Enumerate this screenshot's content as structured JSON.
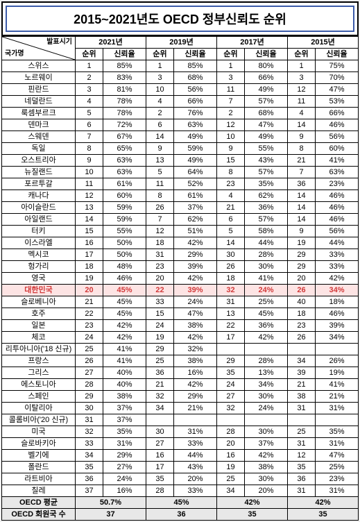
{
  "title": "2015~2021년도 OECD 정부신뢰도 순위",
  "corner": {
    "top": "발표시기",
    "bottom": "국가명"
  },
  "years": [
    "2021년",
    "2019년",
    "2017년",
    "2015년"
  ],
  "subHeaders": {
    "rank": "순위",
    "trust": "신뢰율"
  },
  "rows": [
    {
      "c": "스위스",
      "d": [
        [
          "1",
          "85%"
        ],
        [
          "1",
          "85%"
        ],
        [
          "1",
          "80%"
        ],
        [
          "1",
          "75%"
        ]
      ]
    },
    {
      "c": "노르웨이",
      "d": [
        [
          "2",
          "83%"
        ],
        [
          "3",
          "68%"
        ],
        [
          "3",
          "66%"
        ],
        [
          "3",
          "70%"
        ]
      ]
    },
    {
      "c": "핀란드",
      "d": [
        [
          "3",
          "81%"
        ],
        [
          "10",
          "56%"
        ],
        [
          "11",
          "49%"
        ],
        [
          "12",
          "47%"
        ]
      ]
    },
    {
      "c": "네덜란드",
      "d": [
        [
          "4",
          "78%"
        ],
        [
          "4",
          "66%"
        ],
        [
          "7",
          "57%"
        ],
        [
          "11",
          "53%"
        ]
      ]
    },
    {
      "c": "룩셈부르크",
      "d": [
        [
          "5",
          "78%"
        ],
        [
          "2",
          "76%"
        ],
        [
          "2",
          "68%"
        ],
        [
          "4",
          "66%"
        ]
      ]
    },
    {
      "c": "덴마크",
      "d": [
        [
          "6",
          "72%"
        ],
        [
          "6",
          "63%"
        ],
        [
          "12",
          "47%"
        ],
        [
          "14",
          "46%"
        ]
      ]
    },
    {
      "c": "스웨덴",
      "d": [
        [
          "7",
          "67%"
        ],
        [
          "14",
          "49%"
        ],
        [
          "10",
          "49%"
        ],
        [
          "9",
          "56%"
        ]
      ]
    },
    {
      "c": "독일",
      "d": [
        [
          "8",
          "65%"
        ],
        [
          "9",
          "59%"
        ],
        [
          "9",
          "55%"
        ],
        [
          "8",
          "60%"
        ]
      ]
    },
    {
      "c": "오스트리아",
      "d": [
        [
          "9",
          "63%"
        ],
        [
          "13",
          "49%"
        ],
        [
          "15",
          "43%"
        ],
        [
          "21",
          "41%"
        ]
      ]
    },
    {
      "c": "뉴질랜드",
      "d": [
        [
          "10",
          "63%"
        ],
        [
          "5",
          "64%"
        ],
        [
          "8",
          "57%"
        ],
        [
          "7",
          "63%"
        ]
      ]
    },
    {
      "c": "포르투갈",
      "d": [
        [
          "11",
          "61%"
        ],
        [
          "11",
          "52%"
        ],
        [
          "23",
          "35%"
        ],
        [
          "36",
          "23%"
        ]
      ]
    },
    {
      "c": "캐나다",
      "d": [
        [
          "12",
          "60%"
        ],
        [
          "8",
          "61%"
        ],
        [
          "4",
          "62%"
        ],
        [
          "14",
          "46%"
        ]
      ]
    },
    {
      "c": "아이슬란드",
      "d": [
        [
          "13",
          "59%"
        ],
        [
          "26",
          "37%"
        ],
        [
          "21",
          "36%"
        ],
        [
          "14",
          "46%"
        ]
      ]
    },
    {
      "c": "아일랜드",
      "d": [
        [
          "14",
          "59%"
        ],
        [
          "7",
          "62%"
        ],
        [
          "6",
          "57%"
        ],
        [
          "14",
          "46%"
        ]
      ]
    },
    {
      "c": "터키",
      "d": [
        [
          "15",
          "55%"
        ],
        [
          "12",
          "51%"
        ],
        [
          "5",
          "58%"
        ],
        [
          "9",
          "56%"
        ]
      ]
    },
    {
      "c": "이스라엘",
      "d": [
        [
          "16",
          "50%"
        ],
        [
          "18",
          "42%"
        ],
        [
          "14",
          "44%"
        ],
        [
          "19",
          "44%"
        ]
      ]
    },
    {
      "c": "멕시코",
      "d": [
        [
          "17",
          "50%"
        ],
        [
          "31",
          "29%"
        ],
        [
          "30",
          "28%"
        ],
        [
          "29",
          "33%"
        ]
      ]
    },
    {
      "c": "헝가리",
      "d": [
        [
          "18",
          "48%"
        ],
        [
          "23",
          "39%"
        ],
        [
          "26",
          "30%"
        ],
        [
          "29",
          "33%"
        ]
      ]
    },
    {
      "c": "영국",
      "d": [
        [
          "19",
          "46%"
        ],
        [
          "20",
          "42%"
        ],
        [
          "18",
          "41%"
        ],
        [
          "20",
          "42%"
        ]
      ]
    },
    {
      "c": "대한민국",
      "hl": true,
      "d": [
        [
          "20",
          "45%"
        ],
        [
          "22",
          "39%"
        ],
        [
          "32",
          "24%"
        ],
        [
          "26",
          "34%"
        ]
      ]
    },
    {
      "c": "슬로베니아",
      "d": [
        [
          "21",
          "45%"
        ],
        [
          "33",
          "24%"
        ],
        [
          "31",
          "25%"
        ],
        [
          "40",
          "18%"
        ]
      ]
    },
    {
      "c": "호주",
      "d": [
        [
          "22",
          "45%"
        ],
        [
          "15",
          "47%"
        ],
        [
          "13",
          "45%"
        ],
        [
          "18",
          "46%"
        ]
      ]
    },
    {
      "c": "일본",
      "d": [
        [
          "23",
          "42%"
        ],
        [
          "24",
          "38%"
        ],
        [
          "22",
          "36%"
        ],
        [
          "23",
          "39%"
        ]
      ]
    },
    {
      "c": "체코",
      "d": [
        [
          "24",
          "42%"
        ],
        [
          "19",
          "42%"
        ],
        [
          "17",
          "42%"
        ],
        [
          "26",
          "34%"
        ]
      ]
    },
    {
      "c": "리투아니아('18 신규)",
      "d": [
        [
          "25",
          "41%"
        ],
        [
          "29",
          "32%"
        ],
        [
          "",
          ""
        ],
        [
          "",
          ""
        ]
      ]
    },
    {
      "c": "프랑스",
      "d": [
        [
          "26",
          "41%"
        ],
        [
          "25",
          "38%"
        ],
        [
          "29",
          "28%"
        ],
        [
          "34",
          "26%"
        ]
      ]
    },
    {
      "c": "그리스",
      "d": [
        [
          "27",
          "40%"
        ],
        [
          "36",
          "16%"
        ],
        [
          "35",
          "13%"
        ],
        [
          "39",
          "19%"
        ]
      ]
    },
    {
      "c": "에스토니아",
      "d": [
        [
          "28",
          "40%"
        ],
        [
          "21",
          "42%"
        ],
        [
          "24",
          "34%"
        ],
        [
          "21",
          "41%"
        ]
      ]
    },
    {
      "c": "스페인",
      "d": [
        [
          "29",
          "38%"
        ],
        [
          "32",
          "29%"
        ],
        [
          "27",
          "30%"
        ],
        [
          "38",
          "21%"
        ]
      ]
    },
    {
      "c": "이탈리아",
      "d": [
        [
          "30",
          "37%"
        ],
        [
          "34",
          "21%"
        ],
        [
          "32",
          "24%"
        ],
        [
          "31",
          "31%"
        ]
      ]
    },
    {
      "c": "콜롬비아('20 신규)",
      "d": [
        [
          "31",
          "37%"
        ],
        [
          "",
          ""
        ],
        [
          "",
          ""
        ],
        [
          "",
          ""
        ]
      ]
    },
    {
      "c": "미국",
      "d": [
        [
          "32",
          "35%"
        ],
        [
          "30",
          "31%"
        ],
        [
          "28",
          "30%"
        ],
        [
          "25",
          "35%"
        ]
      ]
    },
    {
      "c": "슬로바키아",
      "d": [
        [
          "33",
          "31%"
        ],
        [
          "27",
          "33%"
        ],
        [
          "20",
          "37%"
        ],
        [
          "31",
          "31%"
        ]
      ]
    },
    {
      "c": "벨기에",
      "d": [
        [
          "34",
          "29%"
        ],
        [
          "16",
          "44%"
        ],
        [
          "16",
          "42%"
        ],
        [
          "12",
          "47%"
        ]
      ]
    },
    {
      "c": "폴란드",
      "d": [
        [
          "35",
          "27%"
        ],
        [
          "17",
          "43%"
        ],
        [
          "19",
          "38%"
        ],
        [
          "35",
          "25%"
        ]
      ]
    },
    {
      "c": "라트비아",
      "d": [
        [
          "36",
          "24%"
        ],
        [
          "35",
          "20%"
        ],
        [
          "25",
          "30%"
        ],
        [
          "36",
          "23%"
        ]
      ]
    },
    {
      "c": "칠레",
      "d": [
        [
          "37",
          "16%"
        ],
        [
          "28",
          "33%"
        ],
        [
          "34",
          "20%"
        ],
        [
          "31",
          "31%"
        ]
      ]
    }
  ],
  "avg": {
    "label": "OECD 평균",
    "values": [
      "50.7%",
      "45%",
      "42%",
      "42%"
    ]
  },
  "count": {
    "label": "OECD 회원국 수",
    "values": [
      "37",
      "36",
      "35",
      "35"
    ]
  },
  "colors": {
    "highlightBg": "#fde4e4",
    "highlightText": "#d23a3a",
    "greyBg": "#e8e8e8",
    "titleBorder": "#3b5ba8"
  }
}
